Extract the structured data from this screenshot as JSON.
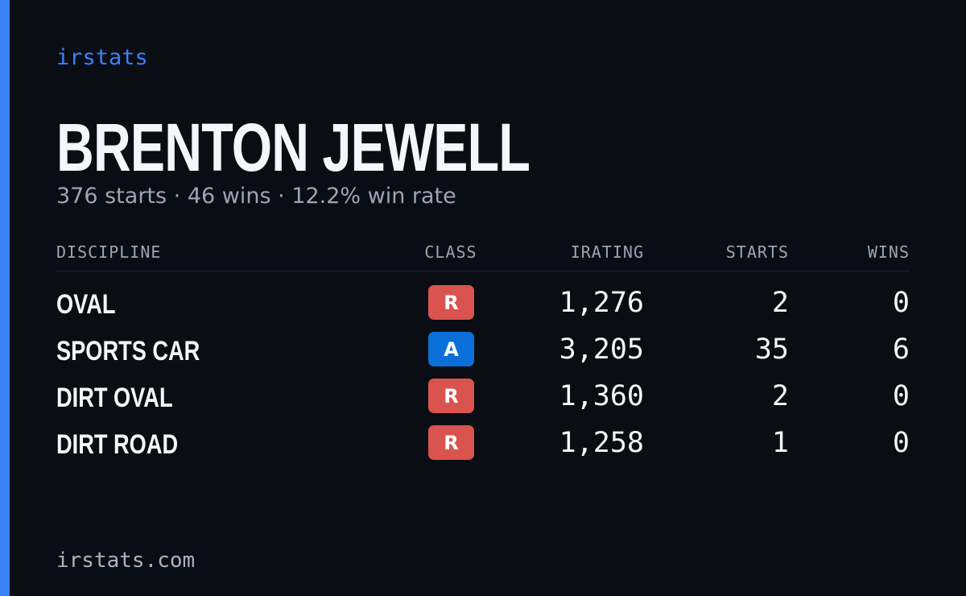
{
  "brand": "irstats",
  "profile": {
    "name": "BRENTON JEWELL",
    "summary": "376 starts · 46 wins · 12.2% win rate"
  },
  "table": {
    "headers": [
      "DISCIPLINE",
      "CLASS",
      "IRATING",
      "STARTS",
      "WINS"
    ],
    "rows": [
      [
        "OVAL",
        "R",
        "1,276",
        "2",
        "0"
      ],
      [
        "SPORTS CAR",
        "A",
        "3,205",
        "35",
        "6"
      ],
      [
        "DIRT OVAL",
        "R",
        "1,360",
        "2",
        "0"
      ],
      [
        "DIRT ROAD",
        "R",
        "1,258",
        "1",
        "0"
      ]
    ],
    "class_colors": {
      "R": "#d9534f",
      "A": "#0a6fd8"
    }
  },
  "footer": "irstats.com"
}
